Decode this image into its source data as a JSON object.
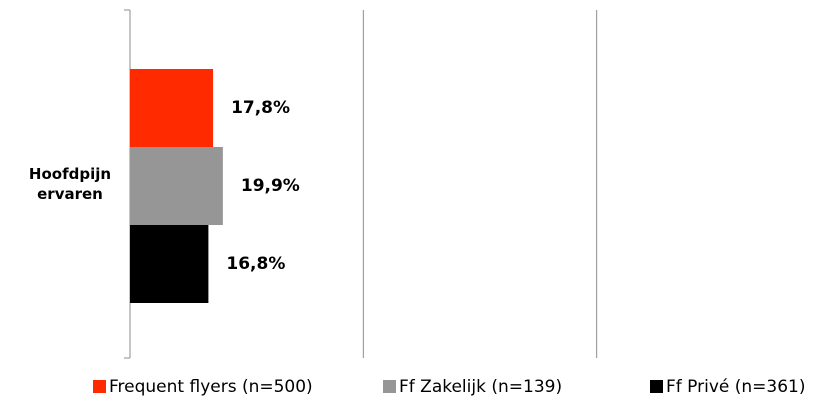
{
  "chart_data": {
    "type": "bar",
    "orientation": "horizontal",
    "categories": [
      "Hoofdpijn ervaren"
    ],
    "series": [
      {
        "name": "Frequent flyers (n=500)",
        "color": "#ff2a00",
        "values": [
          17.8
        ],
        "value_labels": [
          "17,8%"
        ]
      },
      {
        "name": "Ff Zakelijk (n=139)",
        "color": "#969696",
        "values": [
          19.9
        ],
        "value_labels": [
          "19,9%"
        ]
      },
      {
        "name": "Ff Privé (n=361)",
        "color": "#000000",
        "values": [
          16.8
        ],
        "value_labels": [
          "16,8%"
        ]
      }
    ],
    "xlim": [
      0,
      150
    ],
    "xticks": [
      0,
      50,
      100
    ],
    "grid": true,
    "legend": "bottom"
  }
}
